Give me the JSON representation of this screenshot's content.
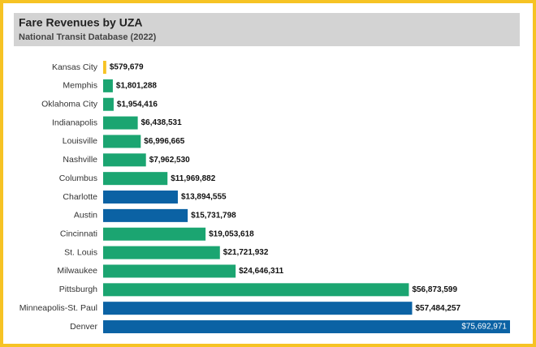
{
  "chart_data": {
    "type": "bar",
    "orientation": "horizontal",
    "title": "Fare Revenues by UZA",
    "subtitle": "National Transit Database (2022)",
    "categories": [
      "Kansas City",
      "Memphis",
      "Oklahoma City",
      "Indianapolis",
      "Louisville",
      "Nashville",
      "Columbus",
      "Charlotte",
      "Austin",
      "Cincinnati",
      "St. Louis",
      "Milwaukee",
      "Pittsburgh",
      "Minneapolis-St. Paul",
      "Denver"
    ],
    "values": [
      579679,
      1801288,
      1954416,
      6438531,
      6996665,
      7962530,
      11969882,
      13894555,
      15731798,
      19053618,
      21721932,
      24646311,
      56873599,
      57484257,
      75692971
    ],
    "value_labels": [
      "$579,679",
      "$1,801,288",
      "$1,954,416",
      "$6,438,531",
      "$6,996,665",
      "$7,962,530",
      "$11,969,882",
      "$13,894,555",
      "$15,731,798",
      "$19,053,618",
      "$21,721,932",
      "$24,646,311",
      "$56,873,599",
      "$57,484,257",
      "$75,692,971"
    ],
    "colors": [
      "#f6c324",
      "#1ba571",
      "#1ba571",
      "#1ba571",
      "#1ba571",
      "#1ba571",
      "#1ba571",
      "#0b62a4",
      "#0b62a4",
      "#1ba571",
      "#1ba571",
      "#1ba571",
      "#1ba571",
      "#0b62a4",
      "#0b62a4"
    ]
  }
}
